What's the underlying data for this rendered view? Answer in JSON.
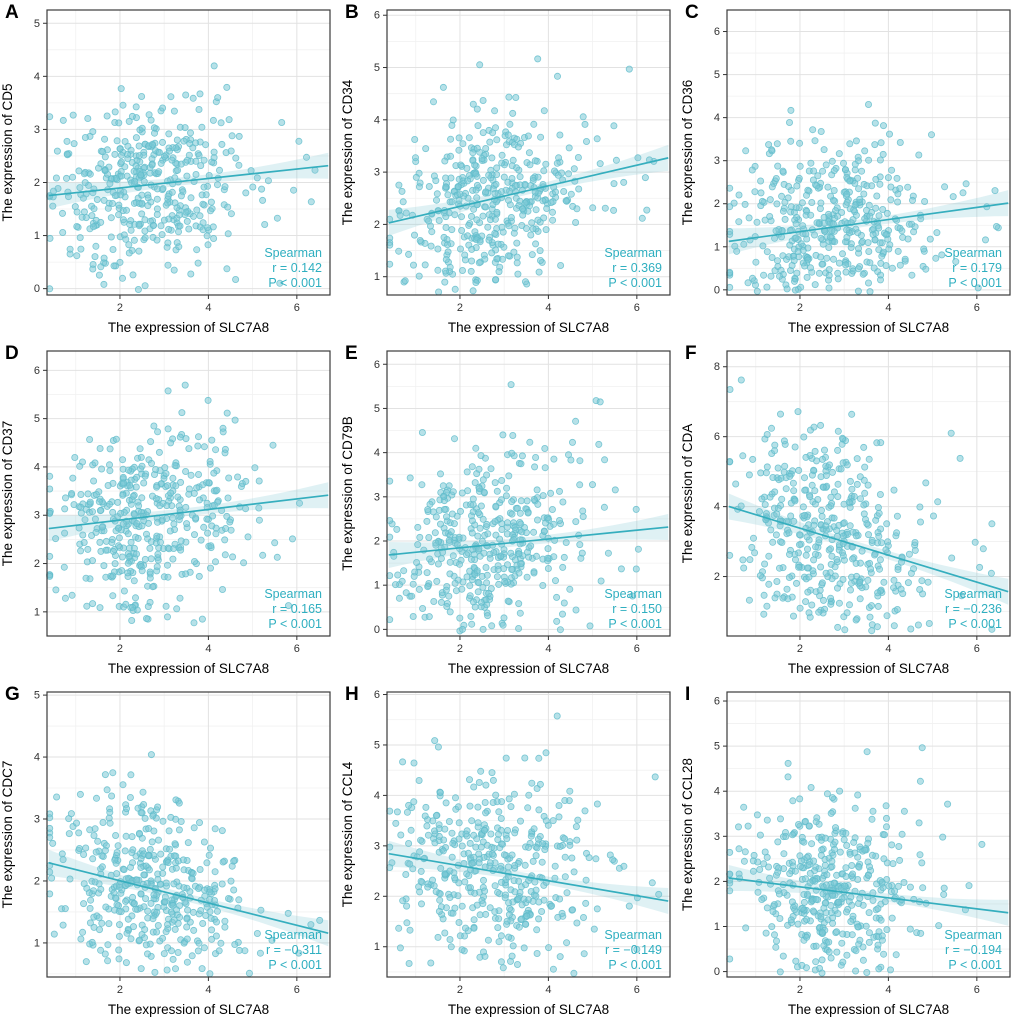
{
  "figure": {
    "background": "#ffffff"
  },
  "colors": {
    "point": "#7AC8D6",
    "point_stroke": "#5FBBCB",
    "line": "#35AEBE",
    "band": "#7FC9D5",
    "annotation": "#2FAFC0",
    "grid_major": "#E2E2E2",
    "grid_minor": "#F1F1F1",
    "panel_border": "#3B3B3B",
    "tick": "#333333"
  },
  "chart_data": [
    {
      "type": "scatter",
      "panel_label": "A",
      "ylabel": "The expression of CD5",
      "xlabel": "The expression of SLC7A8",
      "annotation": {
        "line1": "Spearman",
        "line2": "r = 0.142",
        "line3": "P < 0.001"
      },
      "r": 0.142,
      "xlim": [
        0.35,
        6.75
      ],
      "xticks": [
        2,
        4,
        6
      ],
      "ylim": [
        -0.12,
        5.25
      ],
      "yticks": [
        0,
        1,
        2,
        3,
        4,
        5
      ],
      "n": 430,
      "seed": 101,
      "x_mean": 2.65,
      "x_sd": 1.05,
      "y_sd": 0.82,
      "trend": {
        "x0": 0.35,
        "y0": 1.75,
        "x1": 6.75,
        "y1": 2.32
      }
    },
    {
      "type": "scatter",
      "panel_label": "B",
      "ylabel": "The expression of CD34",
      "xlabel": "The expression of SLC7A8",
      "annotation": {
        "line1": "Spearman",
        "line2": "r = 0.369",
        "line3": "P < 0.001"
      },
      "r": 0.369,
      "xlim": [
        0.35,
        6.75
      ],
      "xticks": [
        2,
        4,
        6
      ],
      "ylim": [
        0.65,
        6.1
      ],
      "yticks": [
        1,
        2,
        3,
        4,
        5,
        6
      ],
      "n": 430,
      "seed": 102,
      "x_mean": 2.65,
      "x_sd": 1.05,
      "y_sd": 0.88,
      "trend": {
        "x0": 0.35,
        "y0": 2.02,
        "x1": 6.75,
        "y1": 3.28
      }
    },
    {
      "type": "scatter",
      "panel_label": "C",
      "ylabel": "The expression of CD36",
      "xlabel": "The expression of SLC7A8",
      "annotation": {
        "line1": "Spearman",
        "line2": "r = 0.179",
        "line3": "P < 0.001"
      },
      "r": 0.179,
      "xlim": [
        0.35,
        6.75
      ],
      "xticks": [
        2,
        4,
        6
      ],
      "ylim": [
        -0.12,
        6.5
      ],
      "yticks": [
        0,
        1,
        2,
        3,
        4,
        5,
        6
      ],
      "n": 430,
      "seed": 103,
      "x_mean": 2.65,
      "x_sd": 1.05,
      "y_sd": 0.98,
      "trend": {
        "x0": 0.35,
        "y0": 1.12,
        "x1": 6.75,
        "y1": 2.02
      }
    },
    {
      "type": "scatter",
      "panel_label": "D",
      "ylabel": "The expression of CD37",
      "xlabel": "The expression of SLC7A8",
      "annotation": {
        "line1": "Spearman",
        "line2": "r = 0.165",
        "line3": "P < 0.001"
      },
      "r": 0.165,
      "xlim": [
        0.35,
        6.75
      ],
      "xticks": [
        2,
        4,
        6
      ],
      "ylim": [
        0.5,
        6.4
      ],
      "yticks": [
        1,
        2,
        3,
        4,
        5,
        6
      ],
      "n": 430,
      "seed": 104,
      "x_mean": 2.65,
      "x_sd": 1.05,
      "y_sd": 0.92,
      "trend": {
        "x0": 0.35,
        "y0": 2.72,
        "x1": 6.75,
        "y1": 3.42
      }
    },
    {
      "type": "scatter",
      "panel_label": "E",
      "ylabel": "The expression of CD79B",
      "xlabel": "The expression of SLC7A8",
      "annotation": {
        "line1": "Spearman",
        "line2": "r = 0.150",
        "line3": "P < 0.001"
      },
      "r": 0.15,
      "xlim": [
        0.35,
        6.75
      ],
      "xticks": [
        2,
        4,
        6
      ],
      "ylim": [
        -0.15,
        6.3
      ],
      "yticks": [
        0,
        1,
        2,
        3,
        4,
        5,
        6
      ],
      "n": 430,
      "seed": 105,
      "x_mean": 2.65,
      "x_sd": 1.05,
      "y_sd": 1.12,
      "trend": {
        "x0": 0.35,
        "y0": 1.68,
        "x1": 6.75,
        "y1": 2.32
      }
    },
    {
      "type": "scatter",
      "panel_label": "F",
      "ylabel": "The expression of CDA",
      "xlabel": "The expression of SLC7A8",
      "annotation": {
        "line1": "Spearman",
        "line2": "r = −0.236",
        "line3": "P < 0.001"
      },
      "r": -0.236,
      "xlim": [
        0.35,
        6.75
      ],
      "xticks": [
        2,
        4,
        6
      ],
      "ylim": [
        0.3,
        8.45
      ],
      "yticks": [
        2,
        4,
        6,
        8
      ],
      "n": 430,
      "seed": 106,
      "x_mean": 2.65,
      "x_sd": 1.05,
      "y_sd": 1.45,
      "trend": {
        "x0": 0.35,
        "y0": 4.02,
        "x1": 6.75,
        "y1": 1.55
      }
    },
    {
      "type": "scatter",
      "panel_label": "G",
      "ylabel": "The expression of CDC7",
      "xlabel": "The expression of SLC7A8",
      "annotation": {
        "line1": "Spearman",
        "line2": "r = −0.311",
        "line3": "P < 0.001"
      },
      "r": -0.311,
      "xlim": [
        0.35,
        6.75
      ],
      "xticks": [
        2,
        4,
        6
      ],
      "ylim": [
        0.45,
        5.05
      ],
      "yticks": [
        1,
        2,
        3,
        4,
        5
      ],
      "n": 430,
      "seed": 107,
      "x_mean": 2.65,
      "x_sd": 1.05,
      "y_sd": 0.72,
      "trend": {
        "x0": 0.35,
        "y0": 2.3,
        "x1": 6.75,
        "y1": 1.15
      }
    },
    {
      "type": "scatter",
      "panel_label": "H",
      "ylabel": "The expression of CCL4",
      "xlabel": "The expression of SLC7A8",
      "annotation": {
        "line1": "Spearman",
        "line2": "r = −0.149",
        "line3": "P < 0.001"
      },
      "r": -0.149,
      "xlim": [
        0.35,
        6.75
      ],
      "xticks": [
        2,
        4,
        6
      ],
      "ylim": [
        0.4,
        6.05
      ],
      "yticks": [
        1,
        2,
        3,
        4,
        5,
        6
      ],
      "n": 430,
      "seed": 108,
      "x_mean": 2.65,
      "x_sd": 1.05,
      "y_sd": 1.0,
      "trend": {
        "x0": 0.35,
        "y0": 2.85,
        "x1": 6.75,
        "y1": 1.9
      }
    },
    {
      "type": "scatter",
      "panel_label": "I",
      "ylabel": "The expression of CCL28",
      "xlabel": "The expression of SLC7A8",
      "annotation": {
        "line1": "Spearman",
        "line2": "r = −0.194",
        "line3": "P < 0.001"
      },
      "r": -0.194,
      "xlim": [
        0.35,
        6.75
      ],
      "xticks": [
        2,
        4,
        6
      ],
      "ylim": [
        -0.12,
        6.2
      ],
      "yticks": [
        0,
        1,
        2,
        3,
        4,
        5,
        6
      ],
      "n": 430,
      "seed": 109,
      "x_mean": 2.65,
      "x_sd": 1.05,
      "y_sd": 1.05,
      "trend": {
        "x0": 0.35,
        "y0": 2.08,
        "x1": 6.75,
        "y1": 1.3
      }
    }
  ]
}
